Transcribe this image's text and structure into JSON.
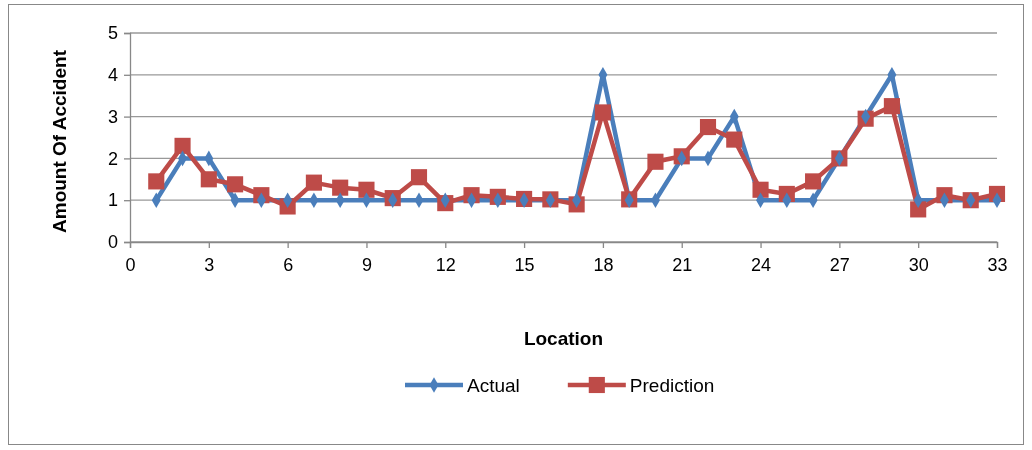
{
  "chart_data": {
    "type": "line",
    "xlabel": "Location",
    "ylabel": "Amount Of Accident",
    "xlim": [
      0,
      33
    ],
    "xticks": [
      0,
      3,
      6,
      9,
      12,
      15,
      18,
      21,
      24,
      27,
      30,
      33
    ],
    "ylim": [
      0,
      5
    ],
    "yticks": [
      0,
      1,
      2,
      3,
      4,
      5
    ],
    "grid": "y",
    "legend": "bottom",
    "x": [
      1,
      2,
      3,
      4,
      5,
      6,
      7,
      8,
      9,
      10,
      11,
      12,
      13,
      14,
      15,
      16,
      17,
      18,
      19,
      20,
      21,
      22,
      23,
      24,
      25,
      26,
      27,
      28,
      29,
      30,
      31,
      32,
      33
    ],
    "series": [
      {
        "name": "Actual",
        "color": "#4a7ebb",
        "marker": "diamond",
        "values": [
          1,
          2,
          2,
          1,
          1,
          1,
          1,
          1,
          1,
          1,
          1,
          1,
          1,
          1,
          1,
          1,
          1,
          4,
          1,
          1,
          2,
          2,
          3,
          1,
          1,
          1,
          2,
          3,
          4,
          1,
          1,
          1,
          1
        ]
      },
      {
        "name": "Prediction",
        "color": "#be4b48",
        "marker": "square",
        "values": [
          1.45,
          2.3,
          1.5,
          1.38,
          1.12,
          0.85,
          1.42,
          1.3,
          1.25,
          1.05,
          1.55,
          0.93,
          1.12,
          1.08,
          1.03,
          1.02,
          0.9,
          3.1,
          1.02,
          1.92,
          2.05,
          2.75,
          2.45,
          1.25,
          1.15,
          1.45,
          2.0,
          2.95,
          3.25,
          0.78,
          1.12,
          1.0,
          1.15
        ]
      }
    ]
  }
}
